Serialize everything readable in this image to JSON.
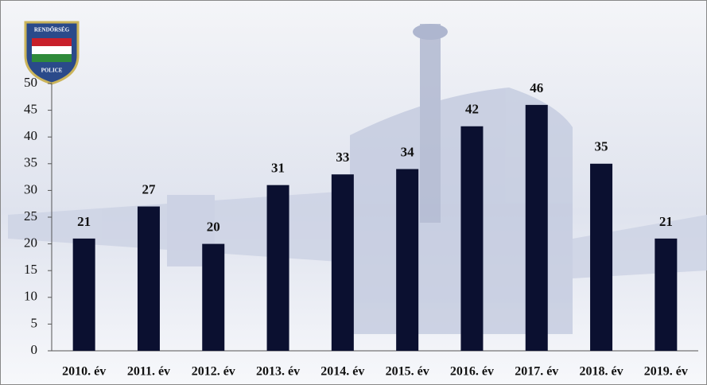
{
  "chart_data": {
    "type": "bar",
    "logo": {
      "top": "RENDŐRSÉG",
      "bottom": "POLICE"
    },
    "categories": [
      "2010. év",
      "2011. év",
      "2012. év",
      "2013. év",
      "2014. év",
      "2015. év",
      "2016. év",
      "2017. év",
      "2018. év",
      "2019. év"
    ],
    "values": [
      21,
      27,
      20,
      31,
      33,
      34,
      42,
      46,
      35,
      21
    ],
    "color": "#0b1030",
    "ylim": [
      0,
      50
    ],
    "yticks": [
      0,
      5,
      10,
      15,
      20,
      25,
      30,
      35,
      40,
      45,
      50
    ],
    "grid": false
  }
}
